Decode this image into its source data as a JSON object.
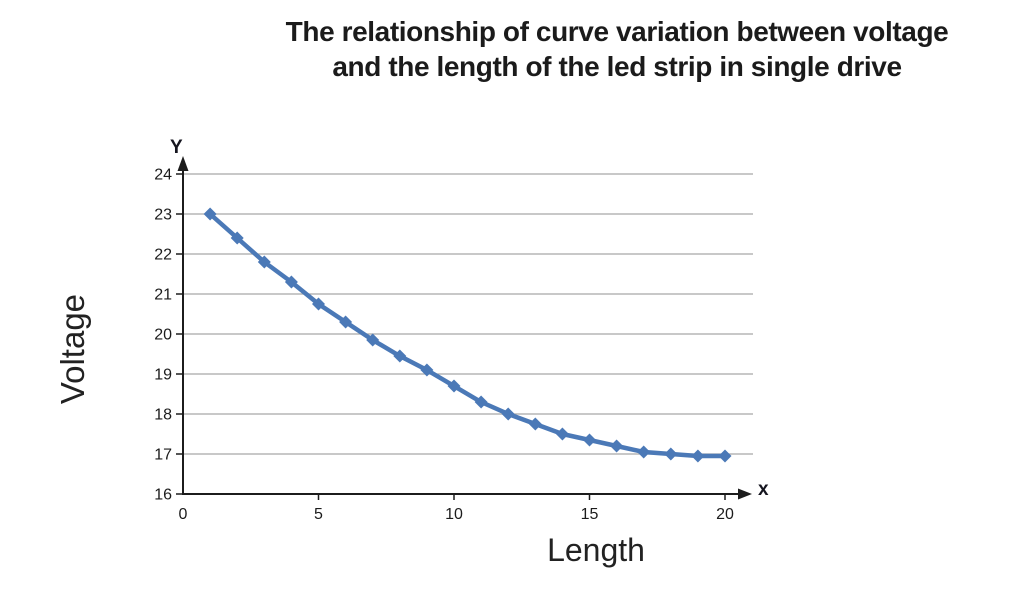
{
  "title": {
    "lines": [
      "The relationship of curve variation between voltage",
      "and the length of the led strip in single drive"
    ]
  },
  "axes": {
    "y_title": "Voltage",
    "x_title": "Length",
    "y_arrow_label": "Y",
    "x_arrow_label": "x"
  },
  "colors": {
    "series": "#4b79b7",
    "gridline": "#a6a6a6",
    "axis": "#1c1c1c",
    "text": "#1c1c1c"
  },
  "chart_data": {
    "type": "line",
    "title": "The relationship of curve variation between voltage and the length of the led strip in single drive",
    "xlabel": "Length",
    "ylabel": "Voltage",
    "x": [
      1,
      2,
      3,
      4,
      5,
      6,
      7,
      8,
      9,
      10,
      11,
      12,
      13,
      14,
      15,
      16,
      17,
      18,
      19,
      20
    ],
    "series": [
      {
        "name": "Voltage",
        "values": [
          23.0,
          22.4,
          21.8,
          21.3,
          20.75,
          20.3,
          19.85,
          19.45,
          19.1,
          18.7,
          18.3,
          18.0,
          17.75,
          17.5,
          17.35,
          17.2,
          17.05,
          17.0,
          16.95,
          16.95
        ]
      }
    ],
    "xlim": [
      0,
      20
    ],
    "ylim": [
      16,
      24
    ],
    "x_ticks": [
      0,
      5,
      10,
      15,
      20
    ],
    "y_ticks": [
      16,
      17,
      18,
      19,
      20,
      21,
      22,
      23,
      24
    ],
    "grid": "horizontal",
    "legend": "none",
    "marker": "diamond",
    "line_color": "#4b79b7"
  }
}
